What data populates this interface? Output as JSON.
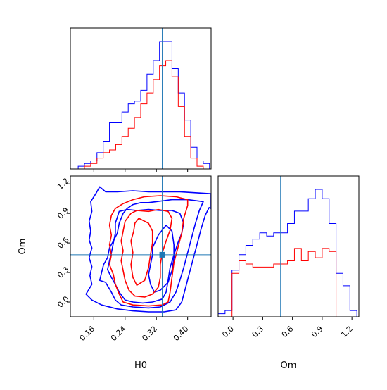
{
  "chart_data": [
    {
      "panel": "H0 marginal",
      "type": "histogram-step",
      "xlabel": "",
      "xlim": [
        0.1,
        0.46
      ],
      "x_ticks": [
        0.16,
        0.24,
        0.32,
        0.4
      ],
      "truth_x": 0.335,
      "bin_edges": [
        0.12,
        0.136,
        0.152,
        0.168,
        0.184,
        0.2,
        0.216,
        0.232,
        0.248,
        0.264,
        0.28,
        0.296,
        0.312,
        0.328,
        0.344,
        0.36,
        0.376,
        0.392,
        0.408,
        0.424,
        0.44,
        0.456
      ],
      "series": [
        {
          "color": "#0000ff",
          "values": [
            1,
            2,
            3,
            6,
            10,
            17,
            17,
            21,
            24,
            25,
            29,
            35,
            40,
            47,
            47,
            37,
            28,
            18,
            8,
            3,
            2
          ]
        },
        {
          "color": "#ff0000",
          "values": [
            0,
            1,
            2,
            4,
            6,
            7,
            9,
            12,
            15,
            19,
            24,
            28,
            33,
            38,
            40,
            34,
            23,
            12,
            4,
            1,
            0
          ]
        }
      ]
    },
    {
      "panel": "H0 vs Om",
      "type": "contour",
      "xlabel": "H0",
      "ylabel": "Om",
      "xlim": [
        0.1,
        0.46
      ],
      "ylim": [
        -0.15,
        1.28
      ],
      "x_ticks": [
        0.16,
        0.24,
        0.32,
        0.4
      ],
      "y_ticks": [
        0.0,
        0.3,
        0.6,
        0.9,
        1.2
      ],
      "y_tick_labels": [
        "0.0",
        "0.3",
        "0.6",
        "0.9",
        "1.2"
      ],
      "truth": [
        0.335,
        0.48
      ],
      "series": [
        {
          "color": "#0000ff",
          "contours": [
            [
              [
                0.175,
                1.17
              ],
              [
                0.19,
                1.12
              ],
              [
                0.22,
                1.12
              ],
              [
                0.26,
                1.13
              ],
              [
                0.3,
                1.12
              ],
              [
                0.34,
                1.12
              ],
              [
                0.38,
                1.12
              ],
              [
                0.42,
                1.11
              ],
              [
                0.46,
                1.1
              ],
              [
                0.46,
                0.95
              ],
              [
                0.455,
                0.96
              ],
              [
                0.445,
                0.88
              ],
              [
                0.435,
                0.75
              ],
              [
                0.425,
                0.6
              ],
              [
                0.415,
                0.45
              ],
              [
                0.405,
                0.3
              ],
              [
                0.395,
                0.15
              ],
              [
                0.385,
                0.0
              ],
              [
                0.37,
                -0.08
              ],
              [
                0.34,
                -0.1
              ],
              [
                0.3,
                -0.1
              ],
              [
                0.26,
                -0.09
              ],
              [
                0.22,
                -0.07
              ],
              [
                0.18,
                -0.03
              ],
              [
                0.155,
                0.02
              ],
              [
                0.14,
                0.08
              ],
              [
                0.155,
                0.18
              ],
              [
                0.15,
                0.27
              ],
              [
                0.155,
                0.36
              ],
              [
                0.148,
                0.45
              ],
              [
                0.155,
                0.55
              ],
              [
                0.148,
                0.63
              ],
              [
                0.152,
                0.72
              ],
              [
                0.148,
                0.82
              ],
              [
                0.155,
                0.92
              ],
              [
                0.152,
                1.02
              ],
              [
                0.165,
                1.1
              ],
              [
                0.175,
                1.17
              ]
            ],
            [
              [
                0.175,
                0.22
              ],
              [
                0.19,
                0.2
              ],
              [
                0.205,
                0.1
              ],
              [
                0.215,
                0.02
              ],
              [
                0.23,
                -0.03
              ],
              [
                0.26,
                -0.05
              ],
              [
                0.3,
                -0.06
              ],
              [
                0.33,
                -0.05
              ],
              [
                0.355,
                0.0
              ],
              [
                0.37,
                0.1
              ],
              [
                0.38,
                0.22
              ],
              [
                0.39,
                0.35
              ],
              [
                0.4,
                0.5
              ],
              [
                0.41,
                0.65
              ],
              [
                0.42,
                0.8
              ],
              [
                0.43,
                0.93
              ],
              [
                0.44,
                1.02
              ],
              [
                0.4,
                1.04
              ],
              [
                0.36,
                1.04
              ],
              [
                0.34,
                1.03
              ],
              [
                0.32,
                1.02
              ],
              [
                0.3,
                1.01
              ],
              [
                0.28,
                1.01
              ],
              [
                0.26,
                0.99
              ],
              [
                0.245,
                0.95
              ],
              [
                0.235,
                0.9
              ],
              [
                0.225,
                0.8
              ],
              [
                0.22,
                0.7
              ],
              [
                0.21,
                0.62
              ],
              [
                0.2,
                0.55
              ],
              [
                0.195,
                0.45
              ],
              [
                0.185,
                0.38
              ],
              [
                0.18,
                0.3
              ],
              [
                0.175,
                0.22
              ]
            ],
            [
              [
                0.225,
                0.92
              ],
              [
                0.245,
                0.94
              ],
              [
                0.27,
                0.93
              ],
              [
                0.3,
                0.94
              ],
              [
                0.33,
                0.93
              ],
              [
                0.36,
                0.93
              ],
              [
                0.38,
                0.9
              ],
              [
                0.39,
                0.8
              ],
              [
                0.385,
                0.7
              ],
              [
                0.375,
                0.6
              ],
              [
                0.365,
                0.48
              ],
              [
                0.355,
                0.35
              ],
              [
                0.35,
                0.22
              ],
              [
                0.345,
                0.1
              ],
              [
                0.335,
                0.03
              ],
              [
                0.31,
                0.0
              ],
              [
                0.285,
                -0.01
              ],
              [
                0.26,
                0.0
              ],
              [
                0.24,
                0.02
              ],
              [
                0.225,
                0.1
              ],
              [
                0.215,
                0.18
              ],
              [
                0.205,
                0.25
              ],
              [
                0.195,
                0.33
              ],
              [
                0.2,
                0.42
              ],
              [
                0.205,
                0.5
              ],
              [
                0.21,
                0.6
              ],
              [
                0.215,
                0.7
              ],
              [
                0.215,
                0.8
              ],
              [
                0.225,
                0.92
              ]
            ],
            [
              [
                0.31,
                0.55
              ],
              [
                0.325,
                0.68
              ],
              [
                0.345,
                0.78
              ],
              [
                0.36,
                0.72
              ],
              [
                0.365,
                0.58
              ],
              [
                0.365,
                0.45
              ],
              [
                0.36,
                0.32
              ],
              [
                0.35,
                0.2
              ],
              [
                0.33,
                0.12
              ],
              [
                0.315,
                0.1
              ],
              [
                0.305,
                0.18
              ],
              [
                0.3,
                0.28
              ],
              [
                0.305,
                0.38
              ],
              [
                0.31,
                0.48
              ],
              [
                0.31,
                0.55
              ]
            ]
          ]
        },
        {
          "color": "#ff0000",
          "contours": [
            [
              [
                0.29,
                1.07
              ],
              [
                0.33,
                1.08
              ],
              [
                0.37,
                1.07
              ],
              [
                0.4,
                1.04
              ],
              [
                0.4,
                0.98
              ],
              [
                0.39,
                0.85
              ],
              [
                0.385,
                0.7
              ],
              [
                0.375,
                0.55
              ],
              [
                0.365,
                0.4
              ],
              [
                0.36,
                0.25
              ],
              [
                0.355,
                0.1
              ],
              [
                0.35,
                0.0
              ],
              [
                0.335,
                -0.03
              ],
              [
                0.3,
                -0.04
              ],
              [
                0.26,
                -0.03
              ],
              [
                0.235,
                0.0
              ],
              [
                0.225,
                0.08
              ],
              [
                0.215,
                0.18
              ],
              [
                0.21,
                0.28
              ],
              [
                0.2,
                0.38
              ],
              [
                0.205,
                0.48
              ],
              [
                0.2,
                0.58
              ],
              [
                0.205,
                0.68
              ],
              [
                0.2,
                0.78
              ],
              [
                0.205,
                0.88
              ],
              [
                0.215,
                0.95
              ],
              [
                0.235,
                1.0
              ],
              [
                0.26,
                1.04
              ],
              [
                0.29,
                1.07
              ]
            ],
            [
              [
                0.255,
                0.9
              ],
              [
                0.27,
                0.93
              ],
              [
                0.3,
                0.92
              ],
              [
                0.325,
                0.94
              ],
              [
                0.35,
                0.92
              ],
              [
                0.36,
                0.85
              ],
              [
                0.355,
                0.73
              ],
              [
                0.345,
                0.62
              ],
              [
                0.335,
                0.5
              ],
              [
                0.33,
                0.38
              ],
              [
                0.33,
                0.25
              ],
              [
                0.325,
                0.15
              ],
              [
                0.31,
                0.08
              ],
              [
                0.29,
                0.05
              ],
              [
                0.265,
                0.06
              ],
              [
                0.25,
                0.12
              ],
              [
                0.24,
                0.22
              ],
              [
                0.235,
                0.32
              ],
              [
                0.23,
                0.42
              ],
              [
                0.235,
                0.52
              ],
              [
                0.23,
                0.62
              ],
              [
                0.235,
                0.72
              ],
              [
                0.24,
                0.82
              ],
              [
                0.255,
                0.9
              ]
            ],
            [
              [
                0.265,
                0.8
              ],
              [
                0.275,
                0.85
              ],
              [
                0.29,
                0.82
              ],
              [
                0.3,
                0.8
              ],
              [
                0.31,
                0.72
              ],
              [
                0.31,
                0.6
              ],
              [
                0.305,
                0.48
              ],
              [
                0.3,
                0.35
              ],
              [
                0.29,
                0.22
              ],
              [
                0.27,
                0.17
              ],
              [
                0.26,
                0.25
              ],
              [
                0.255,
                0.38
              ],
              [
                0.26,
                0.5
              ],
              [
                0.255,
                0.62
              ],
              [
                0.262,
                0.72
              ],
              [
                0.265,
                0.8
              ]
            ]
          ]
        }
      ]
    },
    {
      "panel": "Om marginal",
      "type": "histogram-step",
      "xlabel": "Om",
      "xlim": [
        -0.15,
        1.27
      ],
      "x_ticks": [
        0.0,
        0.3,
        0.6,
        0.9,
        1.2
      ],
      "x_tick_labels": [
        "0.0",
        "0.3",
        "0.6",
        "0.9",
        "1.2"
      ],
      "truth_x": 0.48,
      "bin_edges": [
        -0.15,
        -0.08,
        -0.01,
        0.06,
        0.13,
        0.2,
        0.27,
        0.34,
        0.41,
        0.48,
        0.55,
        0.62,
        0.69,
        0.76,
        0.83,
        0.9,
        0.97,
        1.04,
        1.11,
        1.18,
        1.25
      ],
      "series": [
        {
          "color": "#0000ff",
          "values": [
            1,
            2,
            15,
            20,
            23,
            25,
            27,
            26,
            27,
            27,
            30,
            34,
            34,
            38,
            41,
            38,
            30,
            14,
            10,
            2
          ]
        },
        {
          "color": "#ff0000",
          "values": [
            0,
            0,
            14,
            18,
            17,
            16,
            16,
            16,
            17,
            17,
            18,
            22,
            18,
            21,
            19,
            22,
            21,
            0,
            0,
            0
          ]
        }
      ]
    }
  ]
}
